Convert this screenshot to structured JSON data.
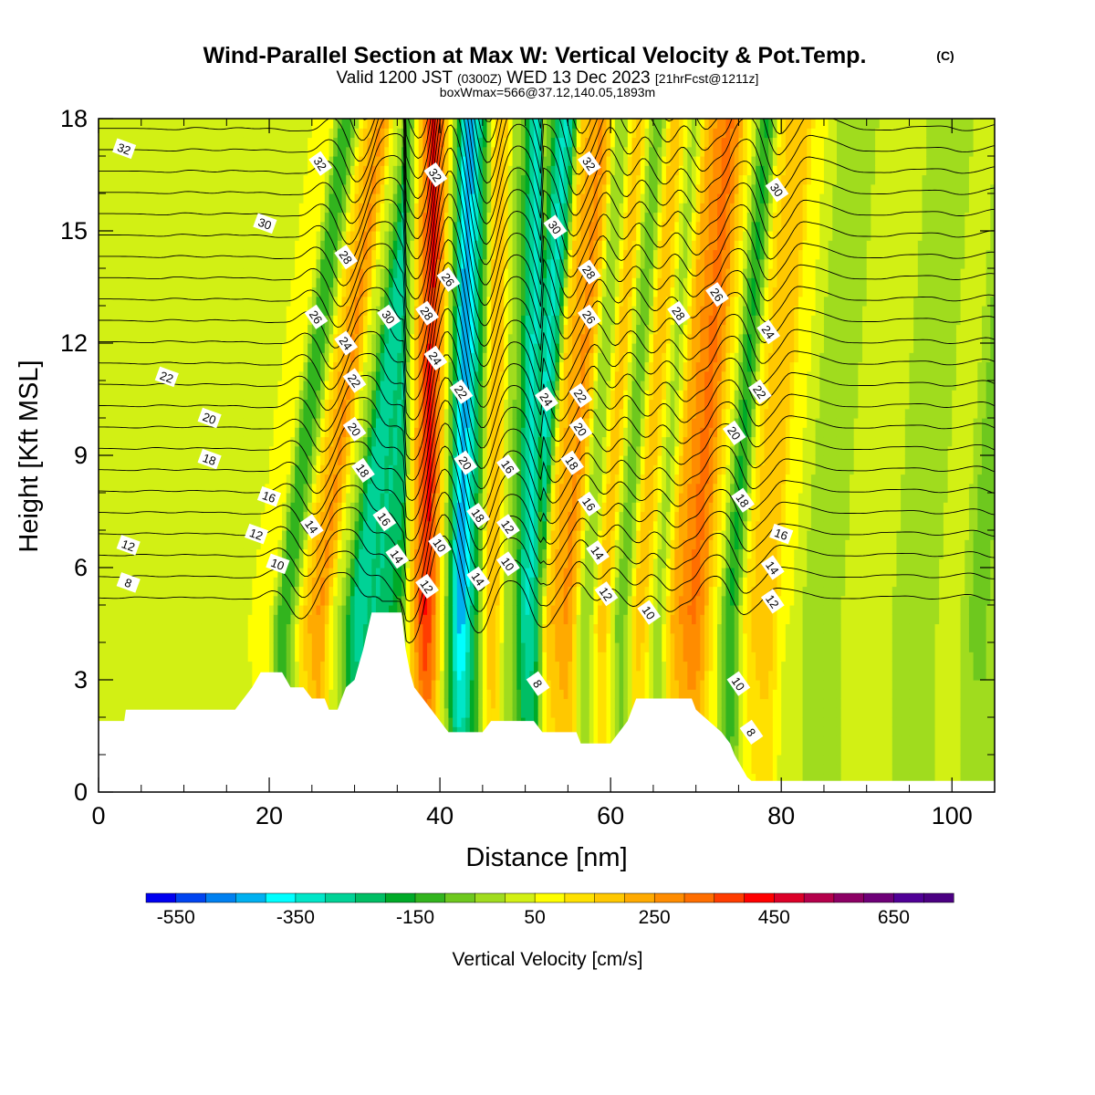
{
  "header": {
    "title": "Wind-Parallel Section at Max W: Vertical Velocity & Pot.Temp.",
    "copyright": "(C)",
    "valid_prefix": "Valid 1200 JST",
    "valid_utc": "(0300Z)",
    "valid_date": "WED 13 Dec 2023",
    "forecast": "[21hrFcst@1211z]",
    "boxinfo": "boxWmax=566@37.12,140.05,1893m"
  },
  "chart_data": {
    "type": "heatmap",
    "xlabel": "Distance [nm]",
    "ylabel": "Height [Kft MSL]",
    "xlim": [
      0,
      105
    ],
    "ylim": [
      0,
      18
    ],
    "x_ticks": [
      "0",
      "20",
      "40",
      "60",
      "80",
      "100"
    ],
    "y_ticks": [
      "0",
      "3",
      "6",
      "9",
      "12",
      "15",
      "18"
    ],
    "colorbar": {
      "title": "Vertical Velocity [cm/s]",
      "range": [
        -600,
        750
      ],
      "step": 50,
      "labels": [
        "-550",
        "-350",
        "-150",
        "50",
        "250",
        "450",
        "650"
      ],
      "colors": [
        "#0000f0",
        "#0044f0",
        "#0080f0",
        "#00b0f0",
        "#00ffff",
        "#00e6c8",
        "#00d296",
        "#00be64",
        "#00aa28",
        "#32b41e",
        "#6ec81e",
        "#a0dc1e",
        "#d2f014",
        "#ffff00",
        "#ffe100",
        "#ffc800",
        "#ffaa00",
        "#ff8c00",
        "#ff6e00",
        "#ff3c00",
        "#ff0000",
        "#dc0028",
        "#b4004b",
        "#8c0064",
        "#6e0078",
        "#500096",
        "#4b0082"
      ]
    },
    "vertical_velocity_bands": [
      {
        "x": 3,
        "w": 20
      },
      {
        "x": 8,
        "w": 20
      },
      {
        "x": 12,
        "w": 15
      },
      {
        "x": 16,
        "w": 25
      },
      {
        "x": 19,
        "w": 80
      },
      {
        "x": 22,
        "w": -140
      },
      {
        "x": 24,
        "w": 150
      },
      {
        "x": 25.5,
        "w": 280
      },
      {
        "x": 28,
        "w": 20
      },
      {
        "x": 30,
        "w": -300
      },
      {
        "x": 33,
        "w": -250
      },
      {
        "x": 35,
        "w": -150
      },
      {
        "x": 37,
        "w": 150
      },
      {
        "x": 38.3,
        "w": 560
      },
      {
        "x": 39.5,
        "w": 300
      },
      {
        "x": 40.6,
        "w": -150
      },
      {
        "x": 42.5,
        "w": -530
      },
      {
        "x": 44,
        "w": -150
      },
      {
        "x": 46,
        "w": 250
      },
      {
        "x": 48,
        "w": -50
      },
      {
        "x": 50.5,
        "w": -320
      },
      {
        "x": 53,
        "w": 200
      },
      {
        "x": 55,
        "w": 280
      },
      {
        "x": 57,
        "w": -100
      },
      {
        "x": 59,
        "w": 220
      },
      {
        "x": 61,
        "w": -100
      },
      {
        "x": 63.5,
        "w": 200
      },
      {
        "x": 65.5,
        "w": -50
      },
      {
        "x": 67.5,
        "w": 250
      },
      {
        "x": 70,
        "w": 320
      },
      {
        "x": 72,
        "w": 100
      },
      {
        "x": 74,
        "w": -200
      },
      {
        "x": 76,
        "w": 150
      },
      {
        "x": 78,
        "w": 200
      },
      {
        "x": 80.5,
        "w": 50
      },
      {
        "x": 84,
        "w": -20
      },
      {
        "x": 90,
        "w": 20
      },
      {
        "x": 96,
        "w": -30
      },
      {
        "x": 100,
        "w": 10
      },
      {
        "x": 103,
        "w": -60
      }
    ],
    "terrain_kft": [
      [
        0,
        1.9
      ],
      [
        3,
        1.9
      ],
      [
        3.2,
        2.2
      ],
      [
        16,
        2.2
      ],
      [
        17,
        2.5
      ],
      [
        18,
        2.8
      ],
      [
        19,
        3.2
      ],
      [
        21.5,
        3.2
      ],
      [
        22.5,
        2.8
      ],
      [
        24,
        2.8
      ],
      [
        25,
        2.5
      ],
      [
        26.5,
        2.5
      ],
      [
        27,
        2.2
      ],
      [
        28,
        2.2
      ],
      [
        28.5,
        2.5
      ],
      [
        29,
        2.8
      ],
      [
        30,
        3.0
      ],
      [
        30.5,
        3.4
      ],
      [
        31,
        3.8
      ],
      [
        31.5,
        4.3
      ],
      [
        32,
        4.8
      ],
      [
        35.5,
        4.8
      ],
      [
        36,
        3.8
      ],
      [
        36.5,
        3.2
      ],
      [
        37,
        2.8
      ],
      [
        38,
        2.5
      ],
      [
        39,
        2.2
      ],
      [
        40,
        1.9
      ],
      [
        41,
        1.6
      ],
      [
        42,
        1.6
      ],
      [
        45,
        1.6
      ],
      [
        46,
        1.9
      ],
      [
        51,
        1.9
      ],
      [
        52,
        1.6
      ],
      [
        56,
        1.6
      ],
      [
        56.5,
        1.3
      ],
      [
        60,
        1.3
      ],
      [
        61,
        1.6
      ],
      [
        62,
        1.9
      ],
      [
        62.5,
        2.2
      ],
      [
        63,
        2.5
      ],
      [
        69.5,
        2.5
      ],
      [
        70,
        2.2
      ],
      [
        71.5,
        1.9
      ],
      [
        73,
        1.6
      ],
      [
        74,
        1.3
      ],
      [
        74.5,
        1.0
      ],
      [
        75,
        0.8
      ],
      [
        75.5,
        0.6
      ],
      [
        76,
        0.4
      ],
      [
        76.5,
        0.3
      ],
      [
        105,
        0.3
      ]
    ],
    "theta_contours": {
      "levels_C": [
        7,
        8,
        9,
        10,
        11,
        12,
        13,
        14,
        15,
        16,
        17,
        18,
        19,
        20,
        21,
        22,
        23,
        24,
        25,
        26,
        27,
        28,
        29,
        30,
        31,
        32,
        33,
        34
      ]
    },
    "contour_labels": [
      {
        "t": "32",
        "x": 3,
        "y": 17.2
      },
      {
        "t": "30",
        "x": 19.5,
        "y": 15.2
      },
      {
        "t": "32",
        "x": 26,
        "y": 16.8
      },
      {
        "t": "28",
        "x": 29,
        "y": 14.3
      },
      {
        "t": "26",
        "x": 25.5,
        "y": 12.7
      },
      {
        "t": "30",
        "x": 34,
        "y": 12.7
      },
      {
        "t": "24",
        "x": 29,
        "y": 12.0
      },
      {
        "t": "22",
        "x": 30,
        "y": 11.0
      },
      {
        "t": "20",
        "x": 30,
        "y": 9.7
      },
      {
        "t": "18",
        "x": 31,
        "y": 8.6
      },
      {
        "t": "16",
        "x": 20,
        "y": 7.9
      },
      {
        "t": "14",
        "x": 25,
        "y": 7.1
      },
      {
        "t": "16",
        "x": 33.5,
        "y": 7.3
      },
      {
        "t": "14",
        "x": 35,
        "y": 6.3
      },
      {
        "t": "12",
        "x": 18.5,
        "y": 6.9
      },
      {
        "t": "10",
        "x": 21,
        "y": 6.1
      },
      {
        "t": "12",
        "x": 3.5,
        "y": 6.6
      },
      {
        "t": "8",
        "x": 3.5,
        "y": 5.6
      },
      {
        "t": "22",
        "x": 8,
        "y": 11.1
      },
      {
        "t": "20",
        "x": 13,
        "y": 10.0
      },
      {
        "t": "18",
        "x": 13,
        "y": 8.9
      },
      {
        "t": "32",
        "x": 39.5,
        "y": 16.5
      },
      {
        "t": "28",
        "x": 38.5,
        "y": 12.8
      },
      {
        "t": "26",
        "x": 41,
        "y": 13.7
      },
      {
        "t": "24",
        "x": 39.5,
        "y": 11.6
      },
      {
        "t": "22",
        "x": 42.5,
        "y": 10.7
      },
      {
        "t": "20",
        "x": 43,
        "y": 8.8
      },
      {
        "t": "18",
        "x": 44.5,
        "y": 7.4
      },
      {
        "t": "12",
        "x": 38.5,
        "y": 5.5
      },
      {
        "t": "10",
        "x": 40,
        "y": 6.6
      },
      {
        "t": "14",
        "x": 44.5,
        "y": 5.7
      },
      {
        "t": "16",
        "x": 48,
        "y": 8.7
      },
      {
        "t": "12",
        "x": 48,
        "y": 7.1
      },
      {
        "t": "10",
        "x": 48,
        "y": 6.1
      },
      {
        "t": "8",
        "x": 51.5,
        "y": 2.9
      },
      {
        "t": "24",
        "x": 52.5,
        "y": 10.5
      },
      {
        "t": "30",
        "x": 53.5,
        "y": 15.1
      },
      {
        "t": "32",
        "x": 57.5,
        "y": 16.8
      },
      {
        "t": "28",
        "x": 57.5,
        "y": 13.9
      },
      {
        "t": "26",
        "x": 57.5,
        "y": 12.7
      },
      {
        "t": "22",
        "x": 56.5,
        "y": 10.6
      },
      {
        "t": "20",
        "x": 56.5,
        "y": 9.7
      },
      {
        "t": "18",
        "x": 55.5,
        "y": 8.8
      },
      {
        "t": "16",
        "x": 57.5,
        "y": 7.7
      },
      {
        "t": "14",
        "x": 58.5,
        "y": 6.4
      },
      {
        "t": "12",
        "x": 59.5,
        "y": 5.3
      },
      {
        "t": "10",
        "x": 64.5,
        "y": 4.8
      },
      {
        "t": "28",
        "x": 68,
        "y": 12.8
      },
      {
        "t": "26",
        "x": 72.5,
        "y": 13.3
      },
      {
        "t": "24",
        "x": 78.5,
        "y": 12.3
      },
      {
        "t": "22",
        "x": 77.5,
        "y": 10.7
      },
      {
        "t": "20",
        "x": 74.5,
        "y": 9.6
      },
      {
        "t": "18",
        "x": 75.5,
        "y": 7.8
      },
      {
        "t": "16",
        "x": 80,
        "y": 6.9
      },
      {
        "t": "14",
        "x": 79,
        "y": 6.0
      },
      {
        "t": "12",
        "x": 79,
        "y": 5.1
      },
      {
        "t": "10",
        "x": 75,
        "y": 2.9
      },
      {
        "t": "8",
        "x": 76.5,
        "y": 1.6
      },
      {
        "t": "30",
        "x": 79.5,
        "y": 16.1
      }
    ]
  }
}
